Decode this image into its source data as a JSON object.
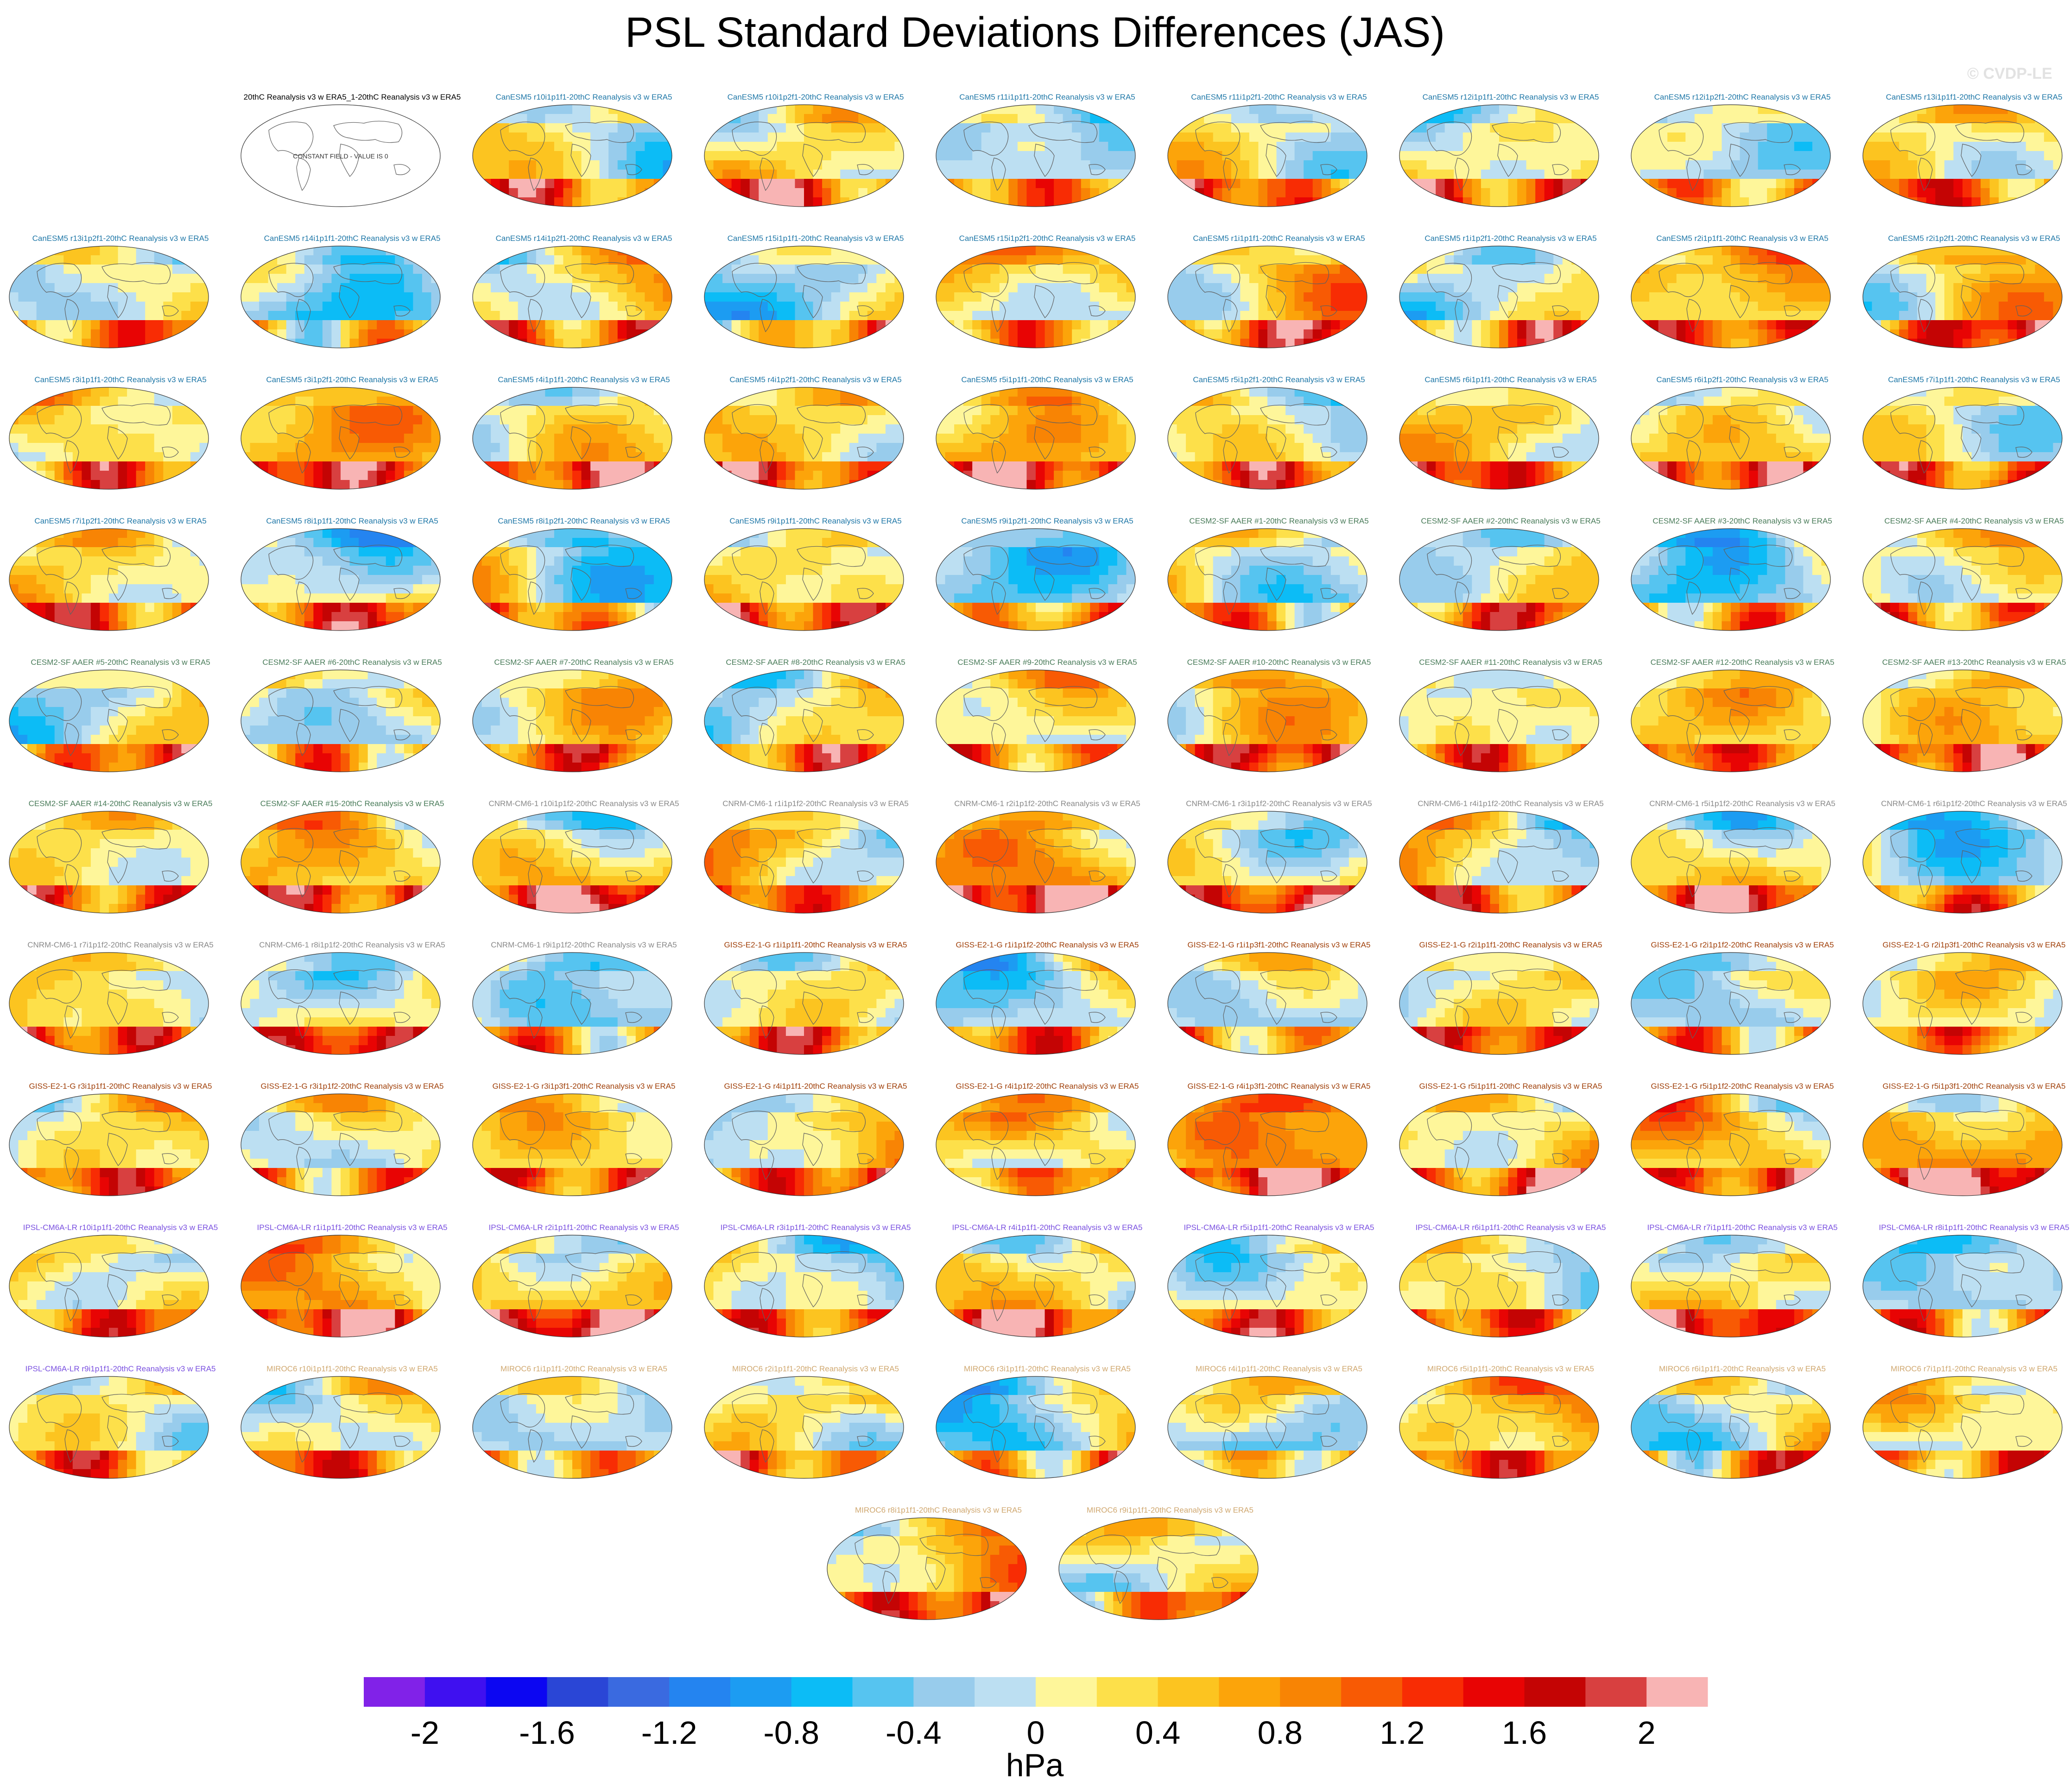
{
  "page": {
    "title": "PSL Standard Deviations Differences (JAS)",
    "credit": "© CVDP-LE"
  },
  "colorbar": {
    "units": "hPa",
    "tick_labels": [
      "-2",
      "-1.6",
      "-1.2",
      "-0.8",
      "-0.4",
      "0",
      "0.4",
      "0.8",
      "1.2",
      "1.6",
      "2"
    ],
    "colors": [
      "#8122e8",
      "#3f10f0",
      "#0c06f2",
      "#2a46d6",
      "#3a6ae0",
      "#2484f0",
      "#1c9cf2",
      "#0cbcf6",
      "#56c4f0",
      "#98ccec",
      "#bcdff2",
      "#fef69a",
      "#fde04a",
      "#fcc420",
      "#fca40a",
      "#f88404",
      "#f85a04",
      "#f82c04",
      "#e80404",
      "#c40404",
      "#d84040",
      "#f8b4b4"
    ]
  },
  "palette": {
    "canesm5": "#2078a8",
    "cesm2": "#4a7c5a",
    "cnrm": "#8a8a8a",
    "giss": "#a0400a",
    "ipsl": "#7a50e0",
    "miroc": "#d0a870",
    "ref": "#000000"
  },
  "map": {
    "projection": "robinson",
    "value_range": [
      -2,
      2
    ]
  },
  "chart_data": {
    "type": "heatmap",
    "title": "PSL Standard Deviations Differences (JAS)",
    "colorbar_units": "hPa",
    "value_range": [
      -2,
      2
    ],
    "panels": [
      {
        "title": "20thC Reanalysis v3 w ERA5_1-20thC Reanalysis v3 w ERA5",
        "group": "ref",
        "note": "CONSTANT FIELD - VALUE IS 0"
      },
      {
        "title": "CanESM5 r10i1p1f1-20thC Reanalysis v3 w ERA5",
        "group": "canesm5"
      },
      {
        "title": "CanESM5 r10i1p2f1-20thC Reanalysis v3 w ERA5",
        "group": "canesm5"
      },
      {
        "title": "CanESM5 r11i1p1f1-20thC Reanalysis v3 w ERA5",
        "group": "canesm5"
      },
      {
        "title": "CanESM5 r11i1p2f1-20thC Reanalysis v3 w ERA5",
        "group": "canesm5"
      },
      {
        "title": "CanESM5 r12i1p1f1-20thC Reanalysis v3 w ERA5",
        "group": "canesm5"
      },
      {
        "title": "CanESM5 r12i1p2f1-20thC Reanalysis v3 w ERA5",
        "group": "canesm5"
      },
      {
        "title": "CanESM5 r13i1p1f1-20thC Reanalysis v3 w ERA5",
        "group": "canesm5"
      },
      {
        "title": "CanESM5 r13i1p2f1-20thC Reanalysis v3 w ERA5",
        "group": "canesm5"
      },
      {
        "title": "CanESM5 r14i1p1f1-20thC Reanalysis v3 w ERA5",
        "group": "canesm5"
      },
      {
        "title": "CanESM5 r14i1p2f1-20thC Reanalysis v3 w ERA5",
        "group": "canesm5"
      },
      {
        "title": "CanESM5 r15i1p1f1-20thC Reanalysis v3 w ERA5",
        "group": "canesm5"
      },
      {
        "title": "CanESM5 r15i1p2f1-20thC Reanalysis v3 w ERA5",
        "group": "canesm5"
      },
      {
        "title": "CanESM5 r1i1p1f1-20thC Reanalysis v3 w ERA5",
        "group": "canesm5"
      },
      {
        "title": "CanESM5 r1i1p2f1-20thC Reanalysis v3 w ERA5",
        "group": "canesm5"
      },
      {
        "title": "CanESM5 r2i1p1f1-20thC Reanalysis v3 w ERA5",
        "group": "canesm5"
      },
      {
        "title": "CanESM5 r2i1p2f1-20thC Reanalysis v3 w ERA5",
        "group": "canesm5"
      },
      {
        "title": "CanESM5 r3i1p1f1-20thC Reanalysis v3 w ERA5",
        "group": "canesm5"
      },
      {
        "title": "CanESM5 r3i1p2f1-20thC Reanalysis v3 w ERA5",
        "group": "canesm5"
      },
      {
        "title": "CanESM5 r4i1p1f1-20thC Reanalysis v3 w ERA5",
        "group": "canesm5"
      },
      {
        "title": "CanESM5 r4i1p2f1-20thC Reanalysis v3 w ERA5",
        "group": "canesm5"
      },
      {
        "title": "CanESM5 r5i1p1f1-20thC Reanalysis v3 w ERA5",
        "group": "canesm5"
      },
      {
        "title": "CanESM5 r5i1p2f1-20thC Reanalysis v3 w ERA5",
        "group": "canesm5"
      },
      {
        "title": "CanESM5 r6i1p1f1-20thC Reanalysis v3 w ERA5",
        "group": "canesm5"
      },
      {
        "title": "CanESM5 r6i1p2f1-20thC Reanalysis v3 w ERA5",
        "group": "canesm5"
      },
      {
        "title": "CanESM5 r7i1p1f1-20thC Reanalysis v3 w ERA5",
        "group": "canesm5"
      },
      {
        "title": "CanESM5 r7i1p2f1-20thC Reanalysis v3 w ERA5",
        "group": "canesm5"
      },
      {
        "title": "CanESM5 r8i1p1f1-20thC Reanalysis v3 w ERA5",
        "group": "canesm5"
      },
      {
        "title": "CanESM5 r8i1p2f1-20thC Reanalysis v3 w ERA5",
        "group": "canesm5"
      },
      {
        "title": "CanESM5 r9i1p1f1-20thC Reanalysis v3 w ERA5",
        "group": "canesm5"
      },
      {
        "title": "CanESM5 r9i1p2f1-20thC Reanalysis v3 w ERA5",
        "group": "canesm5"
      },
      {
        "title": "CESM2-SF AAER #1-20thC Reanalysis v3 w ERA5",
        "group": "cesm2"
      },
      {
        "title": "CESM2-SF AAER #2-20thC Reanalysis v3 w ERA5",
        "group": "cesm2"
      },
      {
        "title": "CESM2-SF AAER #3-20thC Reanalysis v3 w ERA5",
        "group": "cesm2"
      },
      {
        "title": "CESM2-SF AAER #4-20thC Reanalysis v3 w ERA5",
        "group": "cesm2"
      },
      {
        "title": "CESM2-SF AAER #5-20thC Reanalysis v3 w ERA5",
        "group": "cesm2"
      },
      {
        "title": "CESM2-SF AAER #6-20thC Reanalysis v3 w ERA5",
        "group": "cesm2"
      },
      {
        "title": "CESM2-SF AAER #7-20thC Reanalysis v3 w ERA5",
        "group": "cesm2"
      },
      {
        "title": "CESM2-SF AAER #8-20thC Reanalysis v3 w ERA5",
        "group": "cesm2"
      },
      {
        "title": "CESM2-SF AAER #9-20thC Reanalysis v3 w ERA5",
        "group": "cesm2"
      },
      {
        "title": "CESM2-SF AAER #10-20thC Reanalysis v3 w ERA5",
        "group": "cesm2"
      },
      {
        "title": "CESM2-SF AAER #11-20thC Reanalysis v3 w ERA5",
        "group": "cesm2"
      },
      {
        "title": "CESM2-SF AAER #12-20thC Reanalysis v3 w ERA5",
        "group": "cesm2"
      },
      {
        "title": "CESM2-SF AAER #13-20thC Reanalysis v3 w ERA5",
        "group": "cesm2"
      },
      {
        "title": "CESM2-SF AAER #14-20thC Reanalysis v3 w ERA5",
        "group": "cesm2"
      },
      {
        "title": "CESM2-SF AAER #15-20thC Reanalysis v3 w ERA5",
        "group": "cesm2"
      },
      {
        "title": "CNRM-CM6-1 r10i1p1f2-20thC Reanalysis v3 w ERA5",
        "group": "cnrm"
      },
      {
        "title": "CNRM-CM6-1 r1i1p1f2-20thC Reanalysis v3 w ERA5",
        "group": "cnrm"
      },
      {
        "title": "CNRM-CM6-1 r2i1p1f2-20thC Reanalysis v3 w ERA5",
        "group": "cnrm"
      },
      {
        "title": "CNRM-CM6-1 r3i1p1f2-20thC Reanalysis v3 w ERA5",
        "group": "cnrm"
      },
      {
        "title": "CNRM-CM6-1 r4i1p1f2-20thC Reanalysis v3 w ERA5",
        "group": "cnrm"
      },
      {
        "title": "CNRM-CM6-1 r5i1p1f2-20thC Reanalysis v3 w ERA5",
        "group": "cnrm"
      },
      {
        "title": "CNRM-CM6-1 r6i1p1f2-20thC Reanalysis v3 w ERA5",
        "group": "cnrm"
      },
      {
        "title": "CNRM-CM6-1 r7i1p1f2-20thC Reanalysis v3 w ERA5",
        "group": "cnrm"
      },
      {
        "title": "CNRM-CM6-1 r8i1p1f2-20thC Reanalysis v3 w ERA5",
        "group": "cnrm"
      },
      {
        "title": "CNRM-CM6-1 r9i1p1f2-20thC Reanalysis v3 w ERA5",
        "group": "cnrm"
      },
      {
        "title": "GISS-E2-1-G r1i1p1f1-20thC Reanalysis v3 w ERA5",
        "group": "giss"
      },
      {
        "title": "GISS-E2-1-G r1i1p1f2-20thC Reanalysis v3 w ERA5",
        "group": "giss"
      },
      {
        "title": "GISS-E2-1-G r1i1p3f1-20thC Reanalysis v3 w ERA5",
        "group": "giss"
      },
      {
        "title": "GISS-E2-1-G r2i1p1f1-20thC Reanalysis v3 w ERA5",
        "group": "giss"
      },
      {
        "title": "GISS-E2-1-G r2i1p1f2-20thC Reanalysis v3 w ERA5",
        "group": "giss"
      },
      {
        "title": "GISS-E2-1-G r2i1p3f1-20thC Reanalysis v3 w ERA5",
        "group": "giss"
      },
      {
        "title": "GISS-E2-1-G r3i1p1f1-20thC Reanalysis v3 w ERA5",
        "group": "giss"
      },
      {
        "title": "GISS-E2-1-G r3i1p1f2-20thC Reanalysis v3 w ERA5",
        "group": "giss"
      },
      {
        "title": "GISS-E2-1-G r3i1p3f1-20thC Reanalysis v3 w ERA5",
        "group": "giss"
      },
      {
        "title": "GISS-E2-1-G r4i1p1f1-20thC Reanalysis v3 w ERA5",
        "group": "giss"
      },
      {
        "title": "GISS-E2-1-G r4i1p1f2-20thC Reanalysis v3 w ERA5",
        "group": "giss"
      },
      {
        "title": "GISS-E2-1-G r4i1p3f1-20thC Reanalysis v3 w ERA5",
        "group": "giss"
      },
      {
        "title": "GISS-E2-1-G r5i1p1f1-20thC Reanalysis v3 w ERA5",
        "group": "giss"
      },
      {
        "title": "GISS-E2-1-G r5i1p1f2-20thC Reanalysis v3 w ERA5",
        "group": "giss"
      },
      {
        "title": "GISS-E2-1-G r5i1p3f1-20thC Reanalysis v3 w ERA5",
        "group": "giss"
      },
      {
        "title": "IPSL-CM6A-LR r10i1p1f1-20thC Reanalysis v3 w ERA5",
        "group": "ipsl"
      },
      {
        "title": "IPSL-CM6A-LR r1i1p1f1-20thC Reanalysis v3 w ERA5",
        "group": "ipsl"
      },
      {
        "title": "IPSL-CM6A-LR r2i1p1f1-20thC Reanalysis v3 w ERA5",
        "group": "ipsl"
      },
      {
        "title": "IPSL-CM6A-LR r3i1p1f1-20thC Reanalysis v3 w ERA5",
        "group": "ipsl"
      },
      {
        "title": "IPSL-CM6A-LR r4i1p1f1-20thC Reanalysis v3 w ERA5",
        "group": "ipsl"
      },
      {
        "title": "IPSL-CM6A-LR r5i1p1f1-20thC Reanalysis v3 w ERA5",
        "group": "ipsl"
      },
      {
        "title": "IPSL-CM6A-LR r6i1p1f1-20thC Reanalysis v3 w ERA5",
        "group": "ipsl"
      },
      {
        "title": "IPSL-CM6A-LR r7i1p1f1-20thC Reanalysis v3 w ERA5",
        "group": "ipsl"
      },
      {
        "title": "IPSL-CM6A-LR r8i1p1f1-20thC Reanalysis v3 w ERA5",
        "group": "ipsl"
      },
      {
        "title": "IPSL-CM6A-LR r9i1p1f1-20thC Reanalysis v3 w ERA5",
        "group": "ipsl"
      },
      {
        "title": "MIROC6 r10i1p1f1-20thC Reanalysis v3 w ERA5",
        "group": "miroc"
      },
      {
        "title": "MIROC6 r1i1p1f1-20thC Reanalysis v3 w ERA5",
        "group": "miroc"
      },
      {
        "title": "MIROC6 r2i1p1f1-20thC Reanalysis v3 w ERA5",
        "group": "miroc"
      },
      {
        "title": "MIROC6 r3i1p1f1-20thC Reanalysis v3 w ERA5",
        "group": "miroc"
      },
      {
        "title": "MIROC6 r4i1p1f1-20thC Reanalysis v3 w ERA5",
        "group": "miroc"
      },
      {
        "title": "MIROC6 r5i1p1f1-20thC Reanalysis v3 w ERA5",
        "group": "miroc"
      },
      {
        "title": "MIROC6 r6i1p1f1-20thC Reanalysis v3 w ERA5",
        "group": "miroc"
      },
      {
        "title": "MIROC6 r7i1p1f1-20thC Reanalysis v3 w ERA5",
        "group": "miroc"
      },
      {
        "title": "MIROC6 r8i1p1f1-20thC Reanalysis v3 w ERA5",
        "group": "miroc"
      },
      {
        "title": "MIROC6 r9i1p1f1-20thC Reanalysis v3 w ERA5",
        "group": "miroc"
      }
    ]
  }
}
